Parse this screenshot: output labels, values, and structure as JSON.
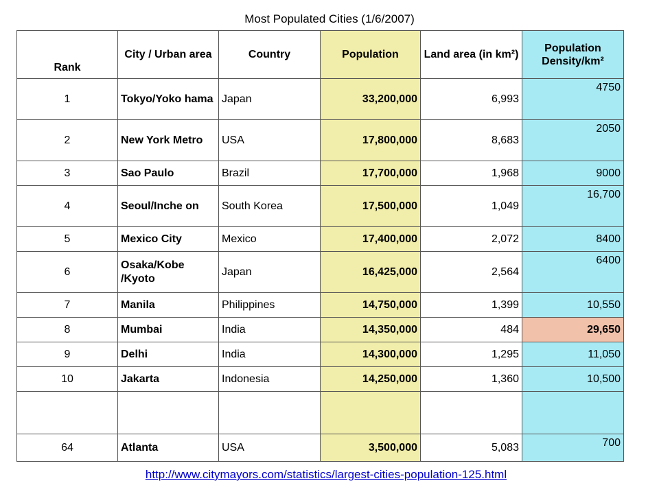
{
  "title": "Most Populated Cities (1/6/2007)",
  "headers": {
    "rank": "Rank",
    "city": "City / Urban area",
    "country": "Country",
    "population": "Population",
    "land_area": "Land area (in km²)",
    "density": "Population Density/km²"
  },
  "rows": [
    {
      "rank": "1",
      "city": "Tokyo/Yoko hama",
      "country": "Japan",
      "population": "33,200,000",
      "land_area": "6,993",
      "density": "4750"
    },
    {
      "rank": "2",
      "city": "New York Metro",
      "country": "USA",
      "population": "17,800,000",
      "land_area": "8,683",
      "density": "2050"
    },
    {
      "rank": "3",
      "city": "Sao Paulo",
      "country": "Brazil",
      "population": "17,700,000",
      "land_area": "1,968",
      "density": "9000"
    },
    {
      "rank": "4",
      "city": "Seoul/Inche on",
      "country": "South Korea",
      "population": "17,500,000",
      "land_area": "1,049",
      "density": "16,700"
    },
    {
      "rank": "5",
      "city": "Mexico City",
      "country": "Mexico",
      "population": "17,400,000",
      "land_area": "2,072",
      "density": "8400"
    },
    {
      "rank": "6",
      "city": "Osaka/Kobe /Kyoto",
      "country": "Japan",
      "population": "16,425,000",
      "land_area": "2,564",
      "density": "6400"
    },
    {
      "rank": "7",
      "city": "Manila",
      "country": "Philippines",
      "population": "14,750,000",
      "land_area": "1,399",
      "density": "10,550"
    },
    {
      "rank": "8",
      "city": "Mumbai",
      "country": "India",
      "population": "14,350,000",
      "land_area": "484",
      "density": "29,650",
      "highlight_color": "#f2c1aa"
    },
    {
      "rank": "9",
      "city": "Delhi",
      "country": "India",
      "population": "14,300,000",
      "land_area": "1,295",
      "density": "11,050"
    },
    {
      "rank": "10",
      "city": "Jakarta",
      "country": "Indonesia",
      "population": "14,250,000",
      "land_area": "1,360",
      "density": "10,500"
    },
    {
      "rank": "",
      "city": "",
      "country": "",
      "population": "",
      "land_area": "",
      "density": ""
    },
    {
      "rank": "64",
      "city": "Atlanta",
      "country": "USA",
      "population": "3,500,000",
      "land_area": "5,083",
      "density": "700"
    }
  ],
  "colors": {
    "population_column": "#f1edaa",
    "density_column": "#a8eaf4",
    "highlight": "#f2c1aa",
    "link": "#0000cc"
  },
  "source_link": "http://www.citymayors.com/statistics/largest-cities-population-125.html"
}
